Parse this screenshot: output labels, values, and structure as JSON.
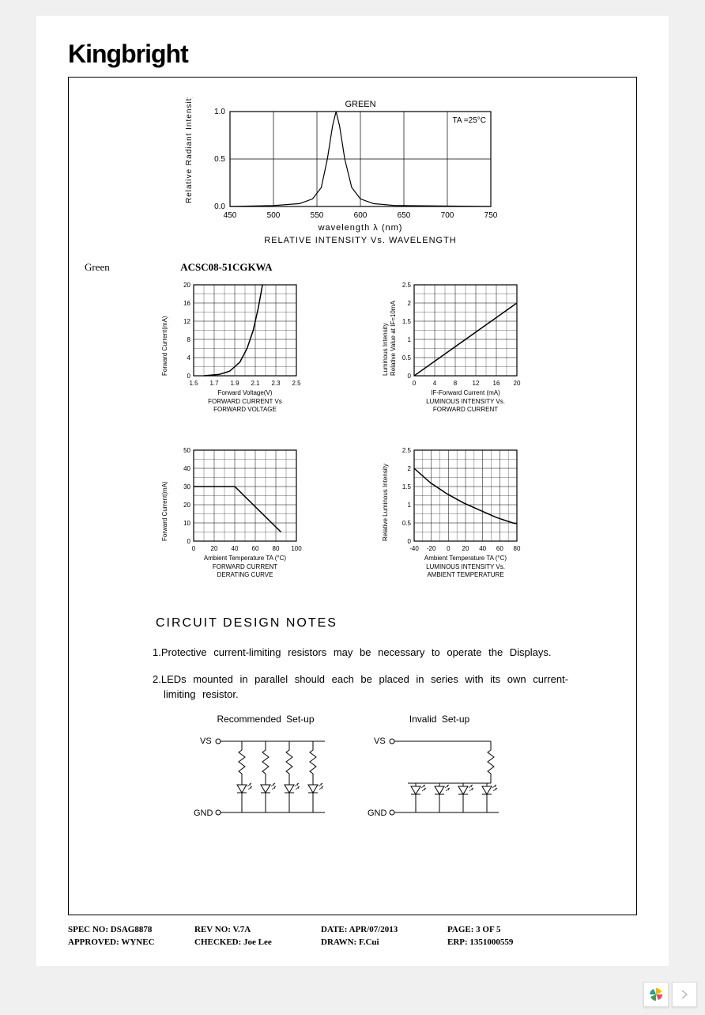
{
  "brand": "Kingbright",
  "color_label": "Green",
  "part_number": "ACSC08-51CGKWA",
  "top_chart": {
    "type": "line",
    "title_top": "GREEN",
    "annotation": "TA =25°C",
    "xlabel": "wavelength λ (nm)",
    "ylabel": "Relative Radiant Intensity",
    "caption": "RELATIVE INTENSITY Vs. WAVELENGTH",
    "xlim": [
      450,
      750
    ],
    "xtick_step": 50,
    "ylim": [
      0,
      1.0
    ],
    "ytick_step": 0.5,
    "curve": [
      [
        450,
        0
      ],
      [
        500,
        0.01
      ],
      [
        530,
        0.03
      ],
      [
        545,
        0.08
      ],
      [
        555,
        0.2
      ],
      [
        562,
        0.5
      ],
      [
        568,
        0.85
      ],
      [
        572,
        1.0
      ],
      [
        576,
        0.85
      ],
      [
        582,
        0.5
      ],
      [
        590,
        0.2
      ],
      [
        600,
        0.08
      ],
      [
        615,
        0.03
      ],
      [
        640,
        0.01
      ],
      [
        750,
        0
      ]
    ],
    "line_color": "#000000",
    "background_color": "#ffffff",
    "grid_color": "#000000"
  },
  "chart_fv": {
    "type": "line",
    "ylabel": "Forward Current(mA)",
    "xlabel": "Forward Voltage(V)",
    "caption1": "FORWARD CURRENT Vs",
    "caption2": "FORWARD VOLTAGE",
    "xlim": [
      1.5,
      2.5
    ],
    "xticks": [
      1.5,
      1.7,
      1.9,
      2.1,
      2.3,
      2.5
    ],
    "ylim": [
      0,
      20
    ],
    "yticks": [
      0,
      4,
      8,
      12,
      16,
      20
    ],
    "curve": [
      [
        1.6,
        0
      ],
      [
        1.75,
        0.3
      ],
      [
        1.85,
        1
      ],
      [
        1.95,
        3
      ],
      [
        2.02,
        6
      ],
      [
        2.08,
        10
      ],
      [
        2.13,
        15
      ],
      [
        2.17,
        20
      ]
    ],
    "line_color": "#000000"
  },
  "chart_li": {
    "type": "line",
    "ylabel": "Luminous Intensity\nRelative Value at IF=10mA",
    "xlabel": "IF-Forward Current (mA)",
    "caption1": "LUMINOUS INTENSITY Vs.",
    "caption2": "FORWARD CURRENT",
    "xlim": [
      0,
      20
    ],
    "xticks": [
      0,
      4,
      8,
      12,
      16,
      20
    ],
    "ylim": [
      0,
      2.5
    ],
    "yticks": [
      0,
      0.5,
      1.0,
      1.5,
      2.0,
      2.5
    ],
    "curve": [
      [
        0,
        0
      ],
      [
        2,
        0.2
      ],
      [
        5,
        0.5
      ],
      [
        10,
        1.0
      ],
      [
        15,
        1.5
      ],
      [
        20,
        2.0
      ]
    ],
    "line_color": "#000000"
  },
  "chart_derate": {
    "type": "line",
    "ylabel": "Forward Current(mA)",
    "xlabel": "Ambient Temperature TA (°C)",
    "caption1": "FORWARD CURRENT",
    "caption2": "DERATING CURVE",
    "xlim": [
      0,
      100
    ],
    "xticks": [
      0,
      20,
      40,
      60,
      80,
      100
    ],
    "ylim": [
      0,
      50
    ],
    "yticks": [
      0,
      10,
      20,
      30,
      40,
      50
    ],
    "curve": [
      [
        0,
        30
      ],
      [
        25,
        30
      ],
      [
        40,
        30
      ],
      [
        85,
        5
      ]
    ],
    "line_color": "#000000"
  },
  "chart_temp": {
    "type": "line",
    "ylabel": "Relative Luminous Intensity",
    "xlabel": "Ambient Temperature TA (°C)",
    "caption1": "LUMINOUS INTENSITY Vs.",
    "caption2": "AMBIENT TEMPERATURE",
    "xlim": [
      -40,
      85
    ],
    "xticks": [
      -40,
      -20,
      0,
      20,
      40,
      60,
      80
    ],
    "ylim": [
      0,
      2.5
    ],
    "yticks": [
      0,
      0.5,
      1.0,
      1.5,
      2.0,
      2.5
    ],
    "curve": [
      [
        -40,
        2.0
      ],
      [
        -20,
        1.6
      ],
      [
        0,
        1.3
      ],
      [
        20,
        1.05
      ],
      [
        40,
        0.85
      ],
      [
        60,
        0.65
      ],
      [
        80,
        0.5
      ],
      [
        85,
        0.48
      ]
    ],
    "line_color": "#000000"
  },
  "section_title": "CIRCUIT DESIGN NOTES",
  "notes": [
    "1.Protective current-limiting resistors may be necessary to operate the Displays.",
    "2.LEDs mounted in parallel should each be placed in series with its own current-limiting resistor."
  ],
  "circuits": {
    "recommended_caption": "Recommended Set-up",
    "invalid_caption": "Invalid Set-up",
    "vs_label": "VS",
    "gnd_label": "GND"
  },
  "footer": {
    "row1": [
      {
        "k": "SPEC NO:",
        "v": "DSAG8878"
      },
      {
        "k": "REV NO:",
        "v": "V.7A"
      },
      {
        "k": "DATE:",
        "v": "APR/07/2013"
      },
      {
        "k": "PAGE:",
        "v": "3 OF 5"
      }
    ],
    "row2": [
      {
        "k": "APPROVED:",
        "v": "WYNEC"
      },
      {
        "k": "CHECKED:",
        "v": "Joe Lee"
      },
      {
        "k": "DRAWN:",
        "v": "F.Cui"
      },
      {
        "k": "ERP:",
        "v": "1351000559"
      }
    ]
  }
}
